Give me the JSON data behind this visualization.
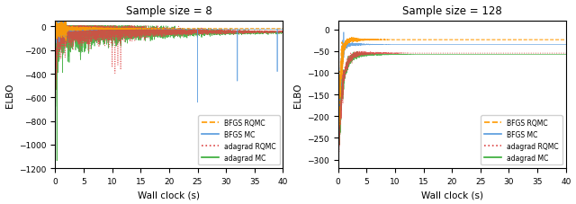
{
  "title1": "Sample size = 8",
  "title2": "Sample size = 128",
  "xlabel": "Wall clock (s)",
  "ylabel": "ELBO",
  "xlim": [
    0,
    40
  ],
  "ylim1": [
    -1200,
    50
  ],
  "ylim2": [
    -320,
    20
  ],
  "yticks1": [
    0,
    -200,
    -400,
    -600,
    -800,
    -1000,
    -1200
  ],
  "yticks2": [
    0,
    -50,
    -100,
    -150,
    -200,
    -250,
    -300
  ],
  "xticks": [
    0,
    5,
    10,
    15,
    20,
    25,
    30,
    35,
    40
  ],
  "colors": {
    "bfgs_rqmc": "#ff9900",
    "bfgs_mc": "#5599dd",
    "adagrad_rqmc": "#dd4444",
    "adagrad_mc": "#33aa33"
  },
  "legend_labels": [
    "BFGS RQMC",
    "BFGS MC",
    "adagrad RQMC",
    "adagrad MC"
  ],
  "figsize": [
    6.4,
    2.28
  ],
  "dpi": 100
}
